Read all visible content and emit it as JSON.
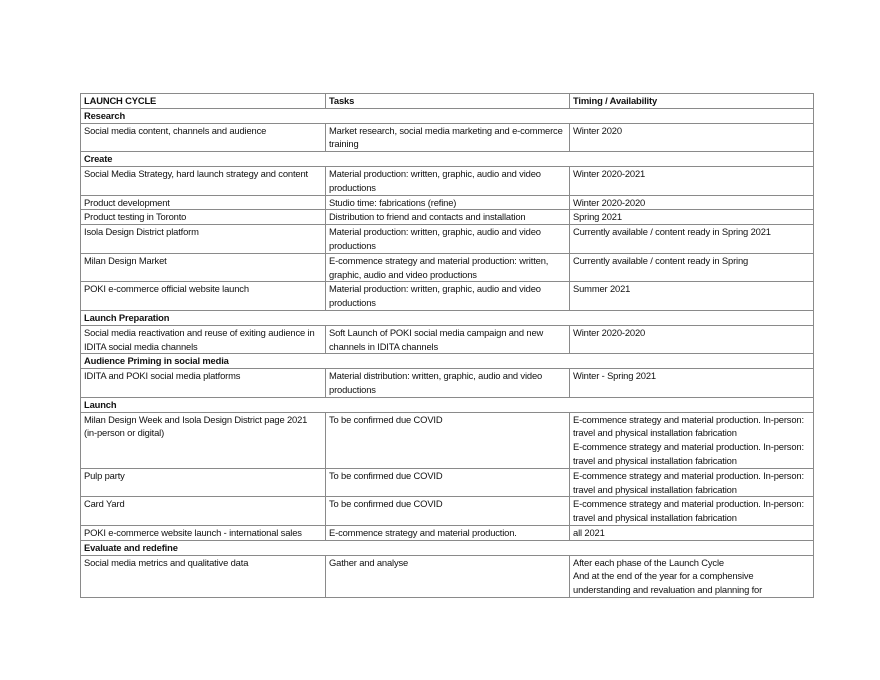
{
  "table": {
    "headers": [
      "LAUNCH CYCLE",
      "Tasks",
      "Timing / Availability"
    ],
    "rows": [
      {
        "section": "Research"
      },
      {
        "cells": [
          "Social media content, channels and audience",
          "Market research, social media marketing and e-commerce training",
          "Winter 2020"
        ]
      },
      {
        "section": "Create"
      },
      {
        "cells": [
          "Social Media Strategy, hard launch strategy and content",
          "Material production: written, graphic, audio and video productions",
          "Winter 2020-2021"
        ]
      },
      {
        "cells": [
          "Product development",
          "Studio time: fabrications (refine)",
          "Winter 2020-2020"
        ]
      },
      {
        "cells": [
          "Product testing in Toronto",
          "Distribution to friend and contacts and installation",
          "Spring 2021"
        ]
      },
      {
        "cells": [
          "Isola Design District platform",
          "Material production: written, graphic, audio and video productions",
          "Currently available / content ready in Spring 2021"
        ]
      },
      {
        "cells": [
          "Milan Design Market",
          "E-commence strategy and material production: written, graphic, audio and video productions",
          "Currently available / content ready in Spring"
        ]
      },
      {
        "cells": [
          "POKI e-commerce official website launch",
          "Material production: written, graphic, audio and video productions",
          "Summer 2021"
        ]
      },
      {
        "section": "Launch Preparation"
      },
      {
        "cells": [
          "Social media reactivation and reuse of exiting audience in IDITA social media channels",
          "Soft Launch of POKI social media campaign and new channels in IDITA channels",
          "Winter 2020-2020"
        ]
      },
      {
        "section": "Audience Priming in social media"
      },
      {
        "cells": [
          "IDITA and POKI social media platforms",
          "Material distribution: written, graphic, audio and video productions",
          "Winter - Spring 2021"
        ]
      },
      {
        "section": "Launch"
      },
      {
        "cells": [
          "Milan Design Week and Isola Design District page 2021 (in-person or digital)",
          "To be confirmed due COVID",
          [
            "E-commence strategy and material production. In-person: travel and physical installation fabrication",
            "E-commence strategy and material production. In-person: travel and physical installation fabrication"
          ]
        ]
      },
      {
        "cells": [
          "Pulp party",
          "To be confirmed due COVID",
          "E-commence strategy and material production. In-person: travel and physical installation fabrication"
        ]
      },
      {
        "cells": [
          "Card Yard",
          "To be confirmed due COVID",
          "E-commence strategy and material production. In-person: travel and physical installation fabrication"
        ]
      },
      {
        "cells": [
          "POKI e-commerce website launch - international sales",
          "E-commence strategy and material production.",
          "all 2021"
        ]
      },
      {
        "section": "Evaluate and redefine"
      },
      {
        "cells": [
          "Social media metrics and qualitative data",
          "Gather and analyse",
          [
            "After each phase of the Launch Cycle",
            "And at the end of the year for a comphensive understanding and revaluation and planning for"
          ]
        ]
      }
    ]
  }
}
